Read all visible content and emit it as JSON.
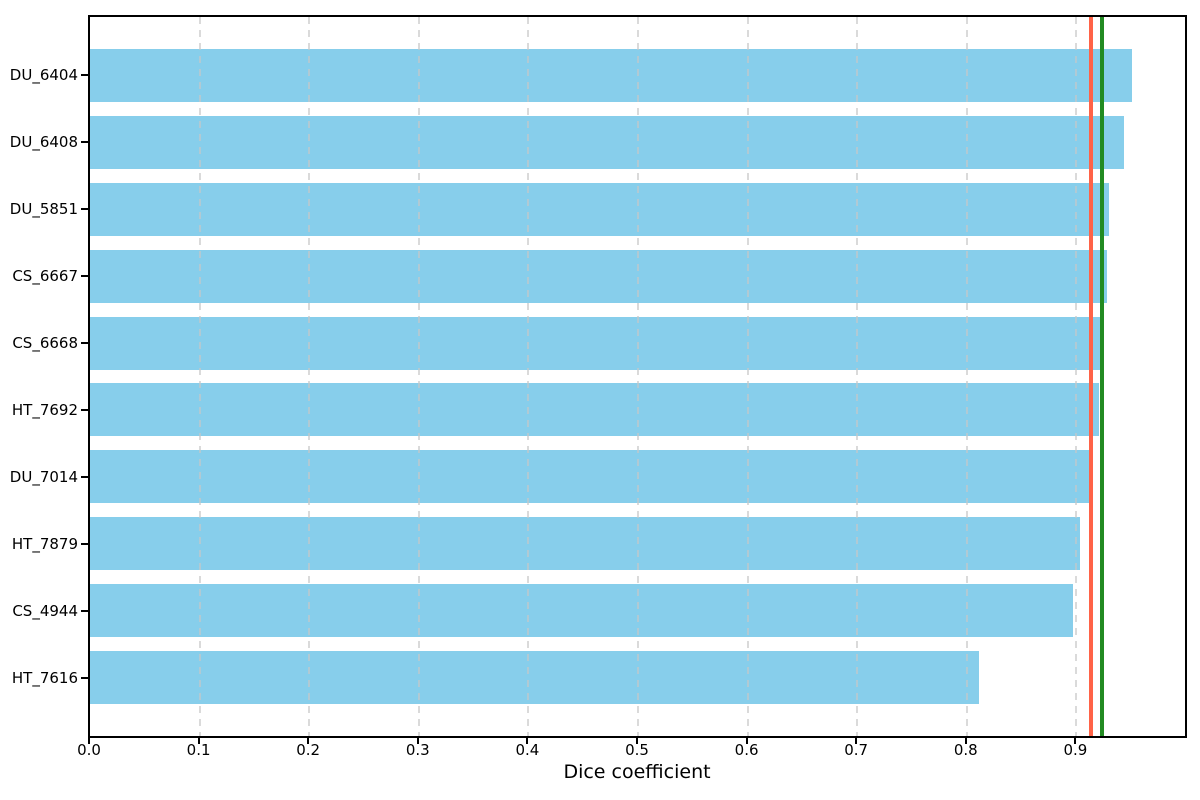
{
  "chart_data": {
    "type": "bar",
    "orientation": "horizontal",
    "title": "",
    "xlabel": "Dice coefficient",
    "ylabel": "",
    "categories": [
      "DU_6404",
      "DU_6408",
      "DU_5851",
      "CS_6667",
      "CS_6668",
      "HT_7692",
      "DU_7014",
      "HT_7879",
      "CS_4944",
      "HT_7616"
    ],
    "values": [
      0.951,
      0.943,
      0.93,
      0.928,
      0.922,
      0.921,
      0.912,
      0.903,
      0.897,
      0.811
    ],
    "xlim": [
      0,
      1.0
    ],
    "x_tick_values": [
      0.0,
      0.1,
      0.2,
      0.3,
      0.4,
      0.5,
      0.6,
      0.7,
      0.8,
      0.9
    ],
    "x_tick_labels": [
      "0.0",
      "0.1",
      "0.2",
      "0.3",
      "0.4",
      "0.5",
      "0.6",
      "0.7",
      "0.8",
      "0.9"
    ],
    "grid": {
      "axis": "x",
      "style": "dashed",
      "color": "#c7c7c7",
      "drawn_above_bars": true
    },
    "bar_color": "#87ceeb",
    "vlines": [
      {
        "name": "red-vertical-line",
        "value": 0.913,
        "color": "#ff6347"
      },
      {
        "name": "green-vertical-line",
        "value": 0.923,
        "color": "#228b22"
      }
    ],
    "legend": "none",
    "background": "#ffffff"
  }
}
